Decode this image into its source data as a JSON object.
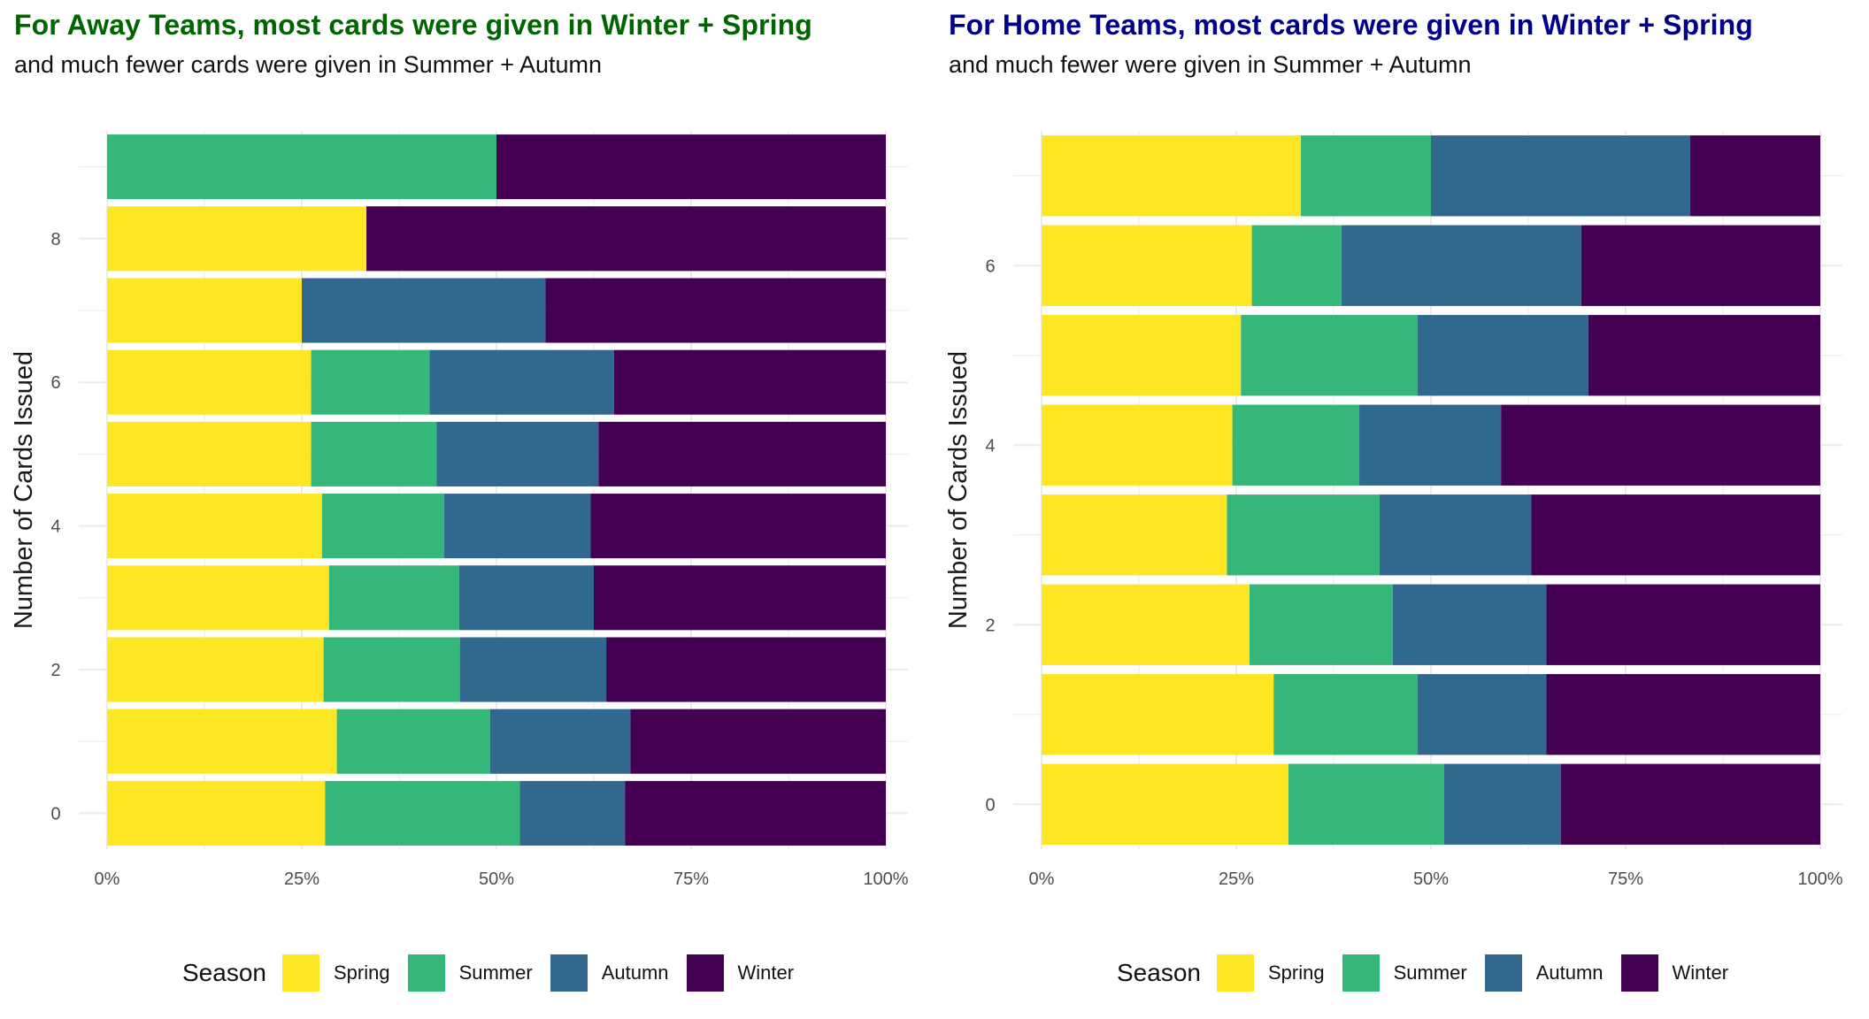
{
  "colors": {
    "Spring": "#FDE725",
    "Summer": "#35B779",
    "Autumn": "#31688E",
    "Winter": "#440154",
    "away_title": "#006400",
    "home_title": "#00008B"
  },
  "chart_data": [
    {
      "type": "bar",
      "orientation": "horizontal",
      "stacked": "percent",
      "title": "For Away Teams, most cards were given in Winter + Spring",
      "subtitle": "and much fewer cards were given in Summer + Autumn",
      "xlabel": "",
      "ylabel": "Number of Cards Issued",
      "xlim": [
        0,
        1
      ],
      "x_ticks": [
        "0%",
        "25%",
        "50%",
        "75%",
        "100%"
      ],
      "ylim": [
        -0.5,
        9.5
      ],
      "y_ticks": [
        "0",
        "2",
        "4",
        "6",
        "8"
      ],
      "categories": [
        0,
        1,
        2,
        3,
        4,
        5,
        6,
        7,
        8,
        9
      ],
      "series": [
        {
          "name": "Spring",
          "values": [
            0.28,
            0.295,
            0.278,
            0.285,
            0.276,
            0.262,
            0.262,
            0.25,
            0.333,
            0.0
          ]
        },
        {
          "name": "Summer",
          "values": [
            0.25,
            0.197,
            0.175,
            0.167,
            0.157,
            0.161,
            0.152,
            0.0,
            0.0,
            0.5
          ]
        },
        {
          "name": "Autumn",
          "values": [
            0.135,
            0.18,
            0.188,
            0.173,
            0.188,
            0.208,
            0.237,
            0.313,
            0.0,
            0.0
          ]
        },
        {
          "name": "Winter",
          "values": [
            0.335,
            0.328,
            0.359,
            0.375,
            0.379,
            0.369,
            0.349,
            0.437,
            0.667,
            0.5
          ]
        }
      ],
      "legend": {
        "title": "Season",
        "position": "bottom",
        "entries": [
          "Spring",
          "Summer",
          "Autumn",
          "Winter"
        ]
      }
    },
    {
      "type": "bar",
      "orientation": "horizontal",
      "stacked": "percent",
      "title": "For Home Teams, most cards were given in Winter + Spring",
      "subtitle": "and much fewer were given in Summer + Autumn",
      "xlabel": "",
      "ylabel": "Number of Cards Issued",
      "xlim": [
        0,
        1
      ],
      "x_ticks": [
        "0%",
        "25%",
        "50%",
        "75%",
        "100%"
      ],
      "ylim": [
        -0.5,
        7.5
      ],
      "y_ticks": [
        "0",
        "2",
        "4",
        "6"
      ],
      "categories": [
        0,
        1,
        2,
        3,
        4,
        5,
        6,
        7
      ],
      "series": [
        {
          "name": "Spring",
          "values": [
            0.317,
            0.298,
            0.267,
            0.238,
            0.245,
            0.256,
            0.27,
            0.333
          ]
        },
        {
          "name": "Summer",
          "values": [
            0.2,
            0.185,
            0.184,
            0.196,
            0.163,
            0.227,
            0.115,
            0.167
          ]
        },
        {
          "name": "Autumn",
          "values": [
            0.15,
            0.165,
            0.197,
            0.195,
            0.182,
            0.219,
            0.308,
            0.333
          ]
        },
        {
          "name": "Winter",
          "values": [
            0.333,
            0.352,
            0.352,
            0.371,
            0.41,
            0.298,
            0.307,
            0.167
          ]
        }
      ],
      "legend": {
        "title": "Season",
        "position": "bottom",
        "entries": [
          "Spring",
          "Summer",
          "Autumn",
          "Winter"
        ]
      }
    }
  ]
}
